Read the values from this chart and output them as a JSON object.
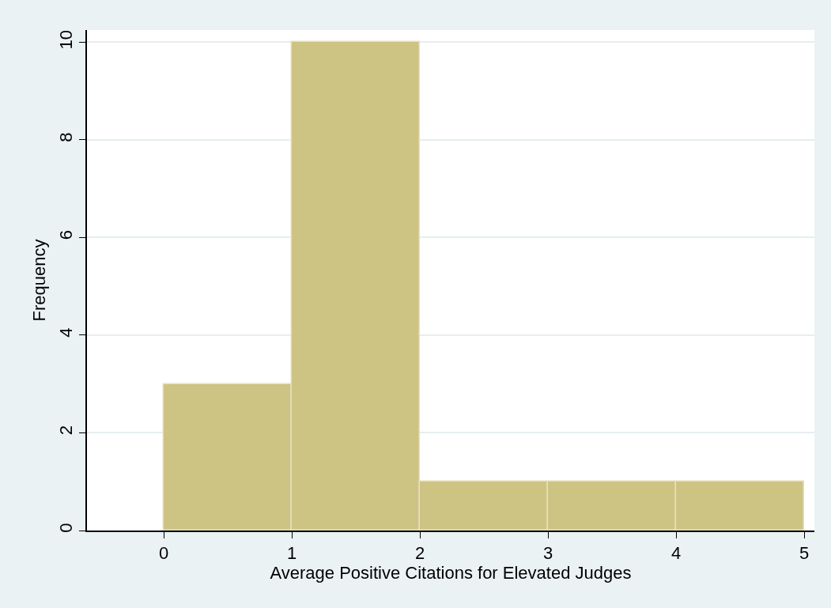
{
  "chart_data": {
    "type": "histogram",
    "xlabel": "Average Positive Citations for Elevated Judges",
    "ylabel": "Frequency",
    "bins": [
      0,
      1,
      2,
      3,
      4,
      5
    ],
    "values": [
      3,
      10,
      1,
      1,
      1
    ],
    "color": "#cdc383",
    "xlim": [
      -0.6,
      5.08
    ],
    "xticks": [
      0,
      1,
      2,
      3,
      4,
      5
    ],
    "ylim": [
      0,
      10.25
    ],
    "yticks": [
      0,
      2,
      4,
      6,
      8,
      10
    ],
    "grid": "y",
    "legend": false
  }
}
